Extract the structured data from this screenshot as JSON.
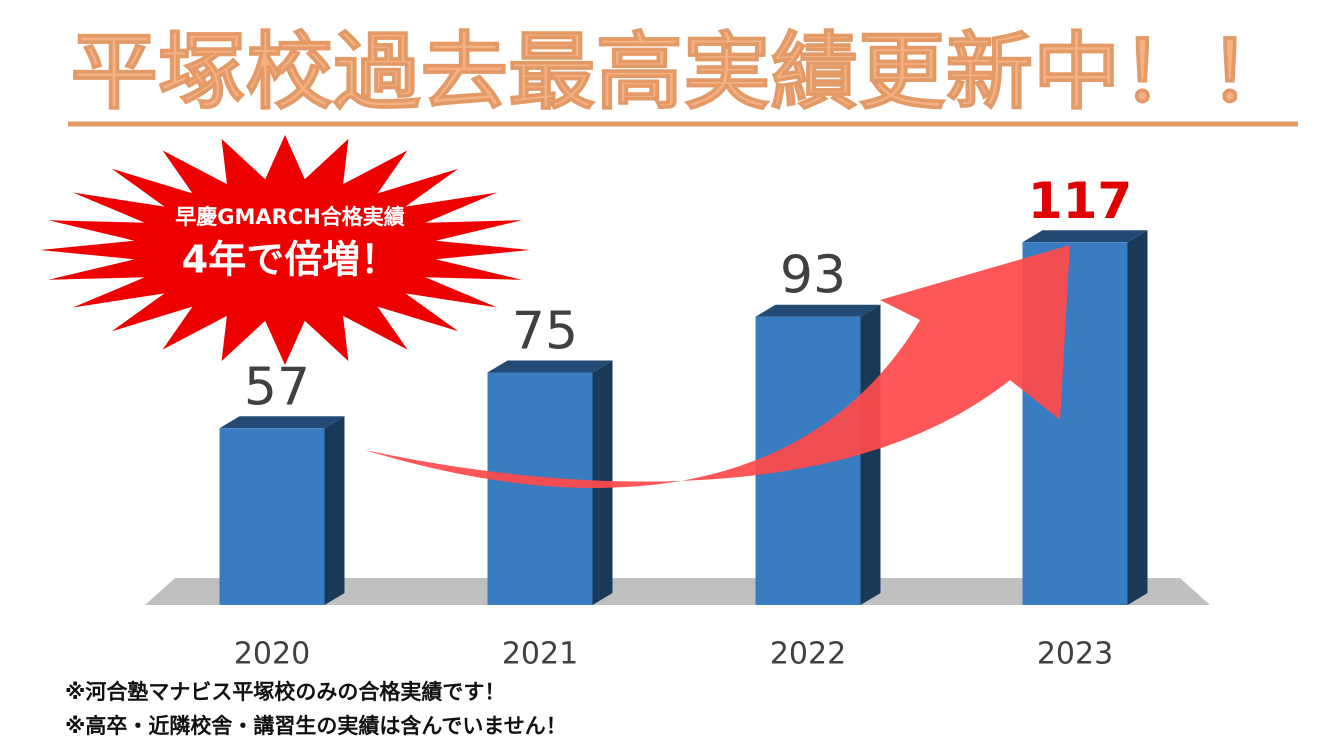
{
  "chart_data": {
    "type": "bar",
    "title": "平塚校過去最高実績更新中！！",
    "annotations": [
      "早慶GMARCH合格実績",
      "4年で倍増！"
    ],
    "categories": [
      "2020",
      "2021",
      "2022",
      "2023"
    ],
    "values": [
      57,
      75,
      93,
      117
    ],
    "color": "#3a7cc2",
    "label_colors": [
      "#404040",
      "#404040",
      "#404040",
      "#e00000"
    ],
    "notes": [
      "※河合塾マナビス平塚校のみの合格実績です！",
      "※高卒・近隣校舎・講習生の実績は含んでいません！"
    ]
  }
}
